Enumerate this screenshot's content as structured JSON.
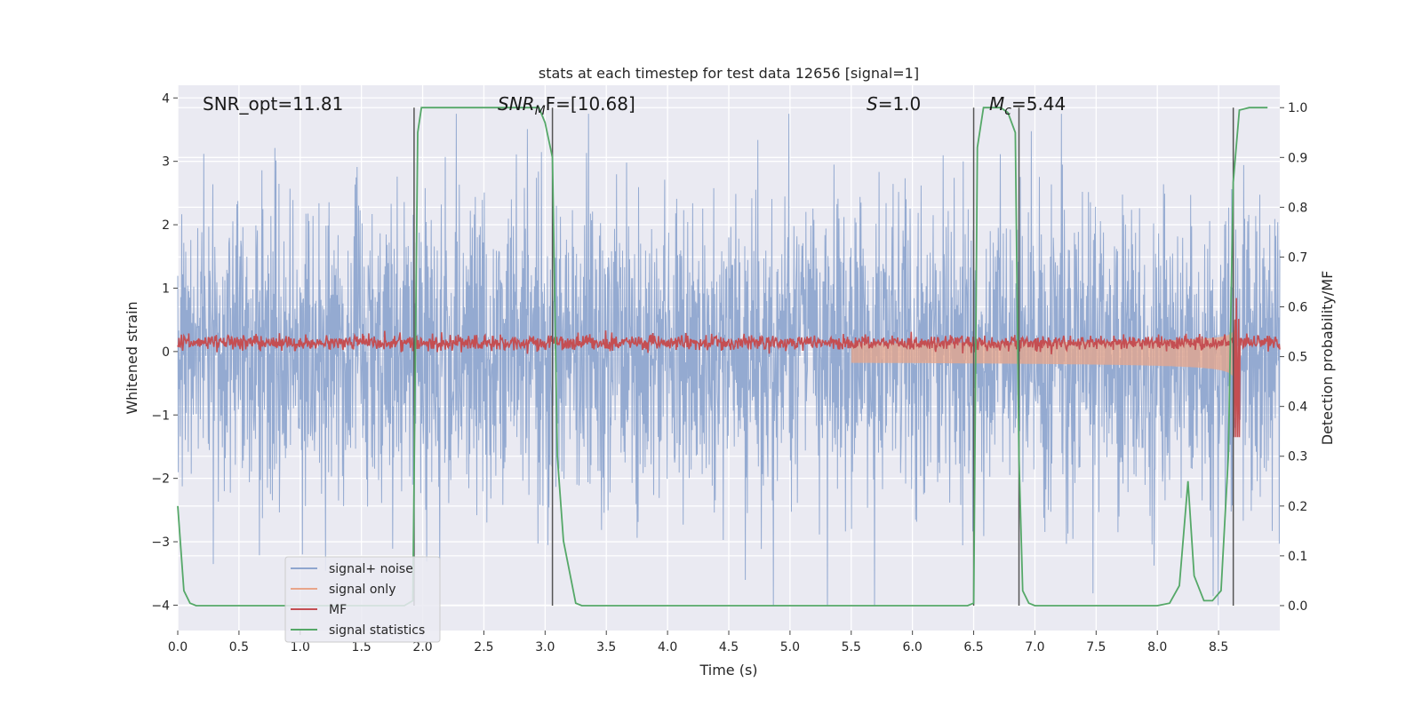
{
  "chart_data": {
    "type": "line",
    "title": "stats at each timestep for test data 12656 [signal=1]",
    "xlabel": "Time (s)",
    "ylabel": "Whitened strain",
    "ylabel_right": "Detection probability/MF",
    "xlim": [
      0.0,
      9.0
    ],
    "ylim": [
      -4.4,
      4.2
    ],
    "ylim_right": [
      -0.05,
      1.045
    ],
    "x_ticks": [
      0.0,
      0.5,
      1.0,
      1.5,
      2.0,
      2.5,
      3.0,
      3.5,
      4.0,
      4.5,
      5.0,
      5.5,
      6.0,
      6.5,
      7.0,
      7.5,
      8.0,
      8.5
    ],
    "x_tick_labels": [
      "0.0",
      "0.5",
      "1.0",
      "1.5",
      "2.0",
      "2.5",
      "3.0",
      "3.5",
      "4.0",
      "4.5",
      "5.0",
      "5.5",
      "6.0",
      "6.5",
      "7.0",
      "7.5",
      "8.0",
      "8.5"
    ],
    "y_ticks": [
      4,
      3,
      2,
      1,
      0,
      -1,
      -2,
      -3,
      -4
    ],
    "y_tick_labels": [
      "4",
      "3",
      "2",
      "1",
      "0",
      "−1",
      "−2",
      "−3",
      "−4"
    ],
    "y2_ticks": [
      1.0,
      0.9,
      0.8,
      0.7,
      0.6,
      0.5,
      0.4,
      0.3,
      0.2,
      0.1,
      0.0
    ],
    "y2_tick_labels": [
      "1.0",
      "0.9",
      "0.8",
      "0.7",
      "0.6",
      "0.5",
      "0.4",
      "0.3",
      "0.2",
      "0.1",
      "0.0"
    ],
    "annotations": {
      "snr_opt": "SNR_opt=11.81",
      "snr_mf_sym": "SNR",
      "snr_mf_sub": "M",
      "snr_mf_rest": "F=[10.68]",
      "s_sym": "S",
      "s_rest": "=1.0",
      "mc_sym": "M",
      "mc_sub": "c",
      "mc_rest": "=5.44"
    },
    "vertical_lines_x": [
      1.93,
      3.06,
      6.5,
      6.87,
      8.62
    ],
    "legend_position": "lower-left",
    "series": [
      {
        "name": "signal+ noise",
        "color": "#8fa6cf",
        "description": "whitened noisy strain, roughly ±2 with spikes to ±3.5"
      },
      {
        "name": "signal only",
        "color": "#e8a58a",
        "description": "chirp growing in amplitude, peaking near t=8.62 s (±0.4)"
      },
      {
        "name": "MF",
        "color": "#c44e52",
        "description": "matched filter output near 0.15, spike to 1.0 near t=8.65 s"
      },
      {
        "name": "signal statistics",
        "color": "#55a868",
        "axis": "right",
        "x": [
          0.0,
          0.05,
          0.1,
          0.15,
          0.2,
          0.3,
          0.5,
          1.0,
          1.5,
          1.85,
          1.92,
          1.96,
          1.99,
          2.05,
          2.5,
          2.95,
          3.0,
          3.06,
          3.1,
          3.15,
          3.25,
          3.3,
          3.5,
          4.0,
          5.0,
          6.0,
          6.45,
          6.5,
          6.53,
          6.58,
          6.65,
          6.72,
          6.78,
          6.84,
          6.87,
          6.9,
          6.95,
          7.0,
          7.5,
          8.0,
          8.1,
          8.18,
          8.25,
          8.3,
          8.38,
          8.45,
          8.52,
          8.58,
          8.62,
          8.67,
          8.75,
          8.9
        ],
        "values": [
          0.2,
          0.03,
          0.005,
          0.0,
          0.0,
          0.0,
          0.0,
          0.0,
          0.0,
          0.0,
          0.01,
          0.95,
          1.0,
          1.0,
          1.0,
          1.0,
          0.97,
          0.9,
          0.3,
          0.13,
          0.005,
          0.0,
          0.0,
          0.0,
          0.0,
          0.0,
          0.0,
          0.005,
          0.92,
          1.0,
          1.0,
          1.0,
          0.99,
          0.95,
          0.3,
          0.03,
          0.005,
          0.0,
          0.0,
          0.0,
          0.005,
          0.04,
          0.25,
          0.06,
          0.01,
          0.01,
          0.03,
          0.3,
          0.85,
          0.995,
          1.0,
          1.0
        ]
      }
    ]
  }
}
